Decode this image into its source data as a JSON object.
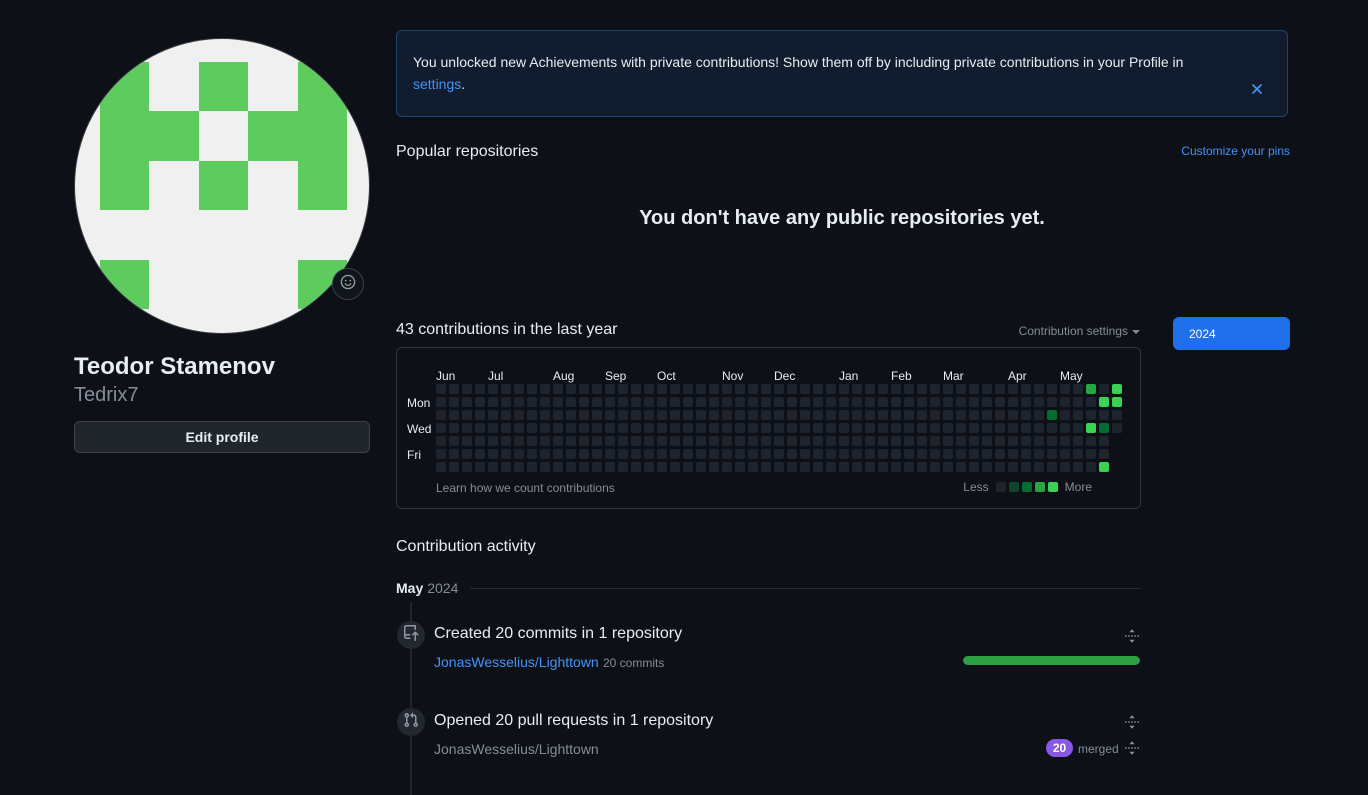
{
  "sidebar": {
    "name": "Teodor Stamenov",
    "username": "Tedrix7",
    "edit_button_label": "Edit profile",
    "avatar": {
      "foreground": "#5dcb5e",
      "background": "#f0f0f0",
      "grid": [
        [
          1,
          0,
          1,
          0,
          1
        ],
        [
          1,
          1,
          0,
          1,
          1
        ],
        [
          1,
          0,
          1,
          0,
          1
        ],
        [
          0,
          0,
          0,
          0,
          0
        ],
        [
          1,
          0,
          0,
          0,
          1
        ]
      ]
    }
  },
  "banner": {
    "message": "You unlocked new Achievements with private contributions! Show them off by including private contributions in your Profile in",
    "link_label": "settings",
    "message_suffix": "."
  },
  "popular_repositories": {
    "title": "Popular repositories",
    "customize_link": "Customize your pins",
    "empty_message": "You don't have any public repositories yet."
  },
  "contributions": {
    "title": "43 contributions in the last year",
    "settings_dropdown": "Contribution settings",
    "year_button": "2024",
    "year_button_color": "#1f6feb",
    "footer_link": "Learn how we count contributions",
    "legend": {
      "less_label": "Less",
      "more_label": "More"
    },
    "palette": [
      "#1e242d",
      "#0e4429",
      "#006d32",
      "#26a641",
      "#39d353"
    ],
    "weeks": 53,
    "last_week_days": 4,
    "month_labels": [
      {
        "label": "Jun",
        "week": 0
      },
      {
        "label": "Jul",
        "week": 4
      },
      {
        "label": "Aug",
        "week": 9
      },
      {
        "label": "Sep",
        "week": 13
      },
      {
        "label": "Oct",
        "week": 17
      },
      {
        "label": "Nov",
        "week": 22
      },
      {
        "label": "Dec",
        "week": 26
      },
      {
        "label": "Jan",
        "week": 31
      },
      {
        "label": "Feb",
        "week": 35
      },
      {
        "label": "Mar",
        "week": 39
      },
      {
        "label": "Apr",
        "week": 44
      },
      {
        "label": "May",
        "week": 48
      }
    ],
    "day_labels": [
      {
        "label": "Mon",
        "row": 1
      },
      {
        "label": "Wed",
        "row": 3
      },
      {
        "label": "Fri",
        "row": 5
      }
    ],
    "cells": [
      {
        "week": 47,
        "day": 2,
        "level": 2
      },
      {
        "week": 50,
        "day": 0,
        "level": 3
      },
      {
        "week": 50,
        "day": 3,
        "level": 4
      },
      {
        "week": 51,
        "day": 1,
        "level": 4
      },
      {
        "week": 51,
        "day": 3,
        "level": 2
      },
      {
        "week": 51,
        "day": 6,
        "level": 4
      },
      {
        "week": 52,
        "day": 0,
        "level": 4
      },
      {
        "week": 52,
        "day": 1,
        "level": 4
      }
    ]
  },
  "activity": {
    "title": "Contribution activity",
    "period_month": "May",
    "period_year": "2024",
    "commits_entry": {
      "title": "Created 20 commits in 1 repository",
      "repo_link": "JonasWesselius/Lighttown",
      "detail": "20 commits",
      "progress_percent": 100,
      "bar_color": "#2ea043"
    },
    "pull_requests_entry": {
      "title": "Opened 20 pull requests in 1 repository",
      "repo": "JonasWesselius/Lighttown",
      "badge_count": "20",
      "badge_label": "merged",
      "badge_color": "#8957e5"
    }
  }
}
